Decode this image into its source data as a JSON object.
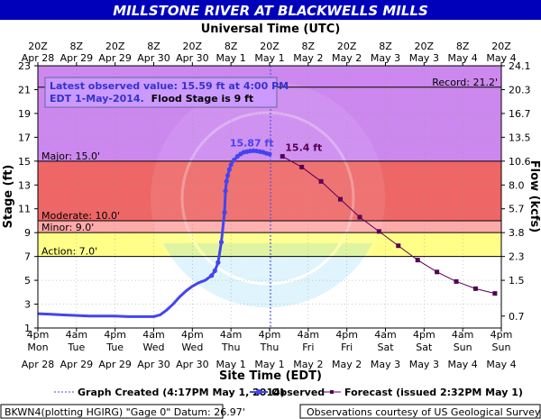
{
  "title": "MILLSTONE RIVER AT BLACKWELLS MILLS",
  "utc_axis_label": "Universal Time (UTC)",
  "site_axis_label": "Site Time (EDT)",
  "stage_axis_label": "Stage (ft)",
  "flow_axis_label": "Flow (kcfs)",
  "latest_observed": {
    "line1": "Latest observed value: 15.59 ft at 4:00 PM",
    "line2_bold_blue": "EDT 1-May-2014.",
    "line2_black": "Flood Stage is 9 ft"
  },
  "colors": {
    "record": "#cc88ee",
    "major": "#ee6666",
    "moderate": "#ffaaaa",
    "minor": "#ffff88",
    "action": "#ffffff",
    "observed": "#4444ee",
    "forecast": "#550055"
  },
  "legend": {
    "graph_created": "Graph Created (4:17PM May 1, 2014)",
    "observed": "Observed",
    "forecast": "Forecast (issued 2:32PM May 1)"
  },
  "footer_left": "BKWN4(plotting HGIRG) \"Gage 0\" Datum: 26.97'",
  "footer_right": "Observations courtesy of US Geological Survey",
  "chart_data": {
    "type": "line",
    "title": "MILLSTONE RIVER AT BLACKWELLS MILLS",
    "xlabel": "Site Time (EDT)",
    "ylabel": "Stage (ft)",
    "y2label": "Flow (kcfs)",
    "ylim": [
      1,
      23
    ],
    "xlim_hours": [
      0,
      144
    ],
    "y_ticks": [
      1,
      3,
      5,
      7,
      9,
      11,
      13,
      15,
      17,
      19,
      21,
      23
    ],
    "flow_ticks": [
      {
        "stage": 2,
        "label": "0.7"
      },
      {
        "stage": 5,
        "label": "1.5"
      },
      {
        "stage": 7,
        "label": "2.3"
      },
      {
        "stage": 9,
        "label": "3.8"
      },
      {
        "stage": 11,
        "label": "5.7"
      },
      {
        "stage": 13,
        "label": "8.0"
      },
      {
        "stage": 15,
        "label": "10.6"
      },
      {
        "stage": 17,
        "label": "13.5"
      },
      {
        "stage": 19,
        "label": "16.7"
      },
      {
        "stage": 21,
        "label": "20.3"
      },
      {
        "stage": 23,
        "label": "24.1"
      }
    ],
    "site_ticks": [
      {
        "h": 0,
        "time": "4pm",
        "day": "Mon",
        "date": "Apr 28"
      },
      {
        "h": 12,
        "time": "4am",
        "day": "Tue",
        "date": "Apr 29"
      },
      {
        "h": 24,
        "time": "4pm",
        "day": "Tue",
        "date": "Apr 29"
      },
      {
        "h": 36,
        "time": "4am",
        "day": "Wed",
        "date": "Apr 30"
      },
      {
        "h": 48,
        "time": "4pm",
        "day": "Wed",
        "date": "Apr 30"
      },
      {
        "h": 60,
        "time": "4am",
        "day": "Thu",
        "date": "May 1"
      },
      {
        "h": 72,
        "time": "4pm",
        "day": "Thu",
        "date": "May 1"
      },
      {
        "h": 84,
        "time": "4am",
        "day": "Fri",
        "date": "May 2"
      },
      {
        "h": 96,
        "time": "4pm",
        "day": "Fri",
        "date": "May 2"
      },
      {
        "h": 108,
        "time": "4am",
        "day": "Sat",
        "date": "May 3"
      },
      {
        "h": 120,
        "time": "4pm",
        "day": "Sat",
        "date": "May 3"
      },
      {
        "h": 132,
        "time": "4am",
        "day": "Sun",
        "date": "May 4"
      },
      {
        "h": 144,
        "time": "4pm",
        "day": "Sun",
        "date": "May 4"
      }
    ],
    "utc_ticks": [
      {
        "h": 0,
        "time": "20Z",
        "date": "Apr 28"
      },
      {
        "h": 12,
        "time": "8Z",
        "date": "Apr 29"
      },
      {
        "h": 24,
        "time": "20Z",
        "date": "Apr 29"
      },
      {
        "h": 36,
        "time": "8Z",
        "date": "Apr 30"
      },
      {
        "h": 48,
        "time": "20Z",
        "date": "Apr 30"
      },
      {
        "h": 60,
        "time": "8Z",
        "date": "May 1"
      },
      {
        "h": 72,
        "time": "20Z",
        "date": "May 1"
      },
      {
        "h": 84,
        "time": "8Z",
        "date": "May 2"
      },
      {
        "h": 96,
        "time": "20Z",
        "date": "May 2"
      },
      {
        "h": 108,
        "time": "8Z",
        "date": "May 3"
      },
      {
        "h": 120,
        "time": "20Z",
        "date": "May 3"
      },
      {
        "h": 132,
        "time": "8Z",
        "date": "May 4"
      },
      {
        "h": 144,
        "time": "20Z",
        "date": "May 4"
      }
    ],
    "bands": [
      {
        "name": "record",
        "from": 21.2,
        "to": 23,
        "color": "#cc88ee"
      },
      {
        "name": "major",
        "from": 15,
        "to": 21.2,
        "color": "#cc88ee"
      },
      {
        "name": "major-fill",
        "from": 10,
        "to": 15,
        "color": "#ee6666"
      },
      {
        "name": "moderate",
        "from": 9,
        "to": 10,
        "color": "#ffaaaa"
      },
      {
        "name": "minor",
        "from": 7,
        "to": 9,
        "color": "#ffff88"
      },
      {
        "name": "action",
        "from": 1,
        "to": 7,
        "color": "#ffffff"
      }
    ],
    "thresholds": [
      {
        "label": "Record: 21.2'",
        "value": 21.2,
        "side": "right"
      },
      {
        "label": "Major: 15.0'",
        "value": 15,
        "side": "left"
      },
      {
        "label": "Moderate: 10.0'",
        "value": 10,
        "side": "left"
      },
      {
        "label": "Minor: 9.0'",
        "value": 9,
        "side": "left"
      },
      {
        "label": "Action: 7.0'",
        "value": 7,
        "side": "left"
      }
    ],
    "graph_created_h": 72.3,
    "observed": {
      "name": "Observed",
      "x_hours": [
        0,
        4,
        8,
        12,
        16,
        20,
        24,
        28,
        32,
        36,
        38,
        40,
        42,
        44,
        46,
        48,
        50,
        52,
        54,
        55,
        56,
        57,
        58,
        58.3,
        58.6,
        59,
        59.5,
        60,
        61,
        62,
        63,
        64,
        65,
        66,
        67,
        68,
        69,
        70,
        71,
        72
      ],
      "y": [
        2.2,
        2.15,
        2.1,
        2.05,
        2.0,
        2.0,
        2.0,
        1.95,
        1.95,
        1.95,
        2.1,
        2.5,
        3.0,
        3.6,
        4.1,
        4.5,
        4.8,
        5.0,
        5.4,
        5.8,
        6.5,
        8.2,
        10.7,
        12.5,
        13.3,
        13.8,
        14.3,
        14.7,
        15.1,
        15.4,
        15.6,
        15.75,
        15.8,
        15.85,
        15.87,
        15.85,
        15.8,
        15.75,
        15.65,
        15.59
      ],
      "peak_label": "15.87 ft",
      "peak_value": 15.87,
      "peak_h": 67
    },
    "forecast": {
      "name": "Forecast (issued 2:32PM May 1)",
      "x_hours": [
        76,
        82,
        88,
        94,
        100,
        106,
        112,
        118,
        124,
        130,
        136,
        142
      ],
      "y": [
        15.4,
        14.5,
        13.3,
        11.8,
        10.3,
        9.1,
        7.9,
        6.7,
        5.7,
        4.9,
        4.3,
        3.9
      ],
      "start_label": "15.4 ft",
      "start_value": 15.4
    }
  }
}
